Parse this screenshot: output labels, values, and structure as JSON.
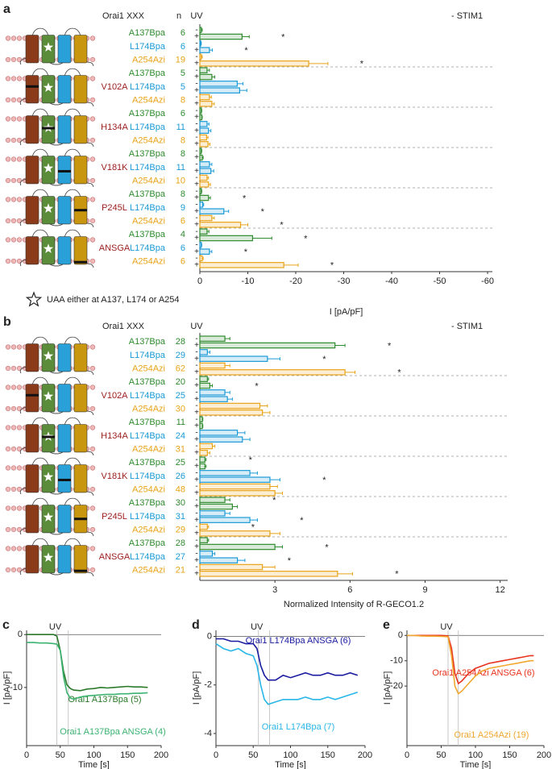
{
  "chart_data": [
    {
      "type": "hbar",
      "panel": "a",
      "header": "Orai1 XXX",
      "n_label": "n",
      "uv_label": "UV",
      "condition": "- STIM1",
      "uv_states": [
        "-",
        "+"
      ],
      "marker": "*",
      "xlabel": "I [pA/pF]",
      "note": "UAA either at A137, L174 or A254",
      "xlim": [
        0,
        -61
      ],
      "xticks": [
        0,
        -10,
        -20,
        -30,
        -40,
        -50,
        -60
      ],
      "uaa": [
        {
          "name": "A137Bpa",
          "color": "#2e8b2e"
        },
        {
          "name": "L174Bpa",
          "color": "#1a9ad6"
        },
        {
          "name": "A254Azi",
          "color": "#e8a317"
        }
      ],
      "groups": [
        {
          "mutant": null,
          "rows": [
            {
              "n": 6,
              "values": [
                -0.3,
                -8.8
              ],
              "errors": [
                0.2,
                1.5
              ],
              "significant": [
                false,
                true
              ]
            },
            {
              "n": 6,
              "values": [
                -0.2,
                -2.0
              ],
              "errors": [
                0.1,
                0.6
              ],
              "significant": [
                false,
                true
              ]
            },
            {
              "n": 19,
              "values": [
                -0.3,
                -22.7
              ],
              "errors": [
                0.2,
                4.0
              ],
              "significant": [
                false,
                true
              ]
            }
          ]
        },
        {
          "mutant": "V102A",
          "rows": [
            {
              "n": 5,
              "values": [
                -1.5,
                -2.5
              ],
              "errors": [
                0.5,
                0.6
              ],
              "significant": [
                false,
                false
              ]
            },
            {
              "n": 5,
              "values": [
                -7.8,
                -8.3
              ],
              "errors": [
                1.2,
                1.5
              ],
              "significant": [
                false,
                false
              ]
            },
            {
              "n": 8,
              "values": [
                -2.0,
                -2.5
              ],
              "errors": [
                0.4,
                0.5
              ],
              "significant": [
                false,
                false
              ]
            }
          ]
        },
        {
          "mutant": "H134A",
          "rows": [
            {
              "n": 6,
              "values": [
                -0.3,
                -0.4
              ],
              "errors": [
                0.1,
                0.1
              ],
              "significant": [
                false,
                false
              ]
            },
            {
              "n": 11,
              "values": [
                -1.5,
                -1.8
              ],
              "errors": [
                0.4,
                0.5
              ],
              "significant": [
                false,
                false
              ]
            },
            {
              "n": 8,
              "values": [
                -1.4,
                -1.7
              ],
              "errors": [
                0.3,
                0.4
              ],
              "significant": [
                false,
                false
              ]
            }
          ]
        },
        {
          "mutant": "V181K",
          "rows": [
            {
              "n": 8,
              "values": [
                -0.3,
                -0.5
              ],
              "errors": [
                0.1,
                0.2
              ],
              "significant": [
                false,
                false
              ]
            },
            {
              "n": 11,
              "values": [
                -2.0,
                -2.3
              ],
              "errors": [
                0.5,
                0.6
              ],
              "significant": [
                false,
                false
              ]
            },
            {
              "n": 10,
              "values": [
                -1.5,
                -1.8
              ],
              "errors": [
                0.3,
                0.4
              ],
              "significant": [
                false,
                false
              ]
            }
          ]
        },
        {
          "mutant": "P245L",
          "rows": [
            {
              "n": 8,
              "values": [
                -0.3,
                -1.8
              ],
              "errors": [
                0.1,
                0.4
              ],
              "significant": [
                false,
                true
              ]
            },
            {
              "n": 9,
              "values": [
                -0.6,
                -5.0
              ],
              "errors": [
                0.2,
                1.0
              ],
              "significant": [
                false,
                true
              ]
            },
            {
              "n": 6,
              "values": [
                -2.5,
                -8.5
              ],
              "errors": [
                0.5,
                1.5
              ],
              "significant": [
                false,
                true
              ]
            }
          ]
        },
        {
          "mutant": "ANSGA",
          "rows": [
            {
              "n": 4,
              "values": [
                -1.5,
                -11.0
              ],
              "errors": [
                0.4,
                4.0
              ],
              "significant": [
                false,
                true
              ]
            },
            {
              "n": 6,
              "values": [
                -0.3,
                -2.0
              ],
              "errors": [
                0.1,
                0.5
              ],
              "significant": [
                false,
                true
              ]
            },
            {
              "n": 6,
              "values": [
                -0.5,
                -17.5
              ],
              "errors": [
                0.2,
                3.0
              ],
              "significant": [
                false,
                true
              ]
            }
          ]
        }
      ]
    },
    {
      "type": "hbar",
      "panel": "b",
      "header": "Orai1 XXX",
      "uv_label": "UV",
      "condition": "- STIM1",
      "uv_states": [
        "-",
        "+"
      ],
      "marker": "*",
      "xlabel": "Normalized Intensity of R-GECO1.2",
      "xlim": [
        0,
        12.3
      ],
      "xticks": [
        3,
        6,
        9,
        12
      ],
      "uaa": [
        {
          "name": "A137Bpa",
          "color": "#2e8b2e"
        },
        {
          "name": "L174Bpa",
          "color": "#1a9ad6"
        },
        {
          "name": "A254Azi",
          "color": "#e8a317"
        }
      ],
      "groups": [
        {
          "mutant": null,
          "rows": [
            {
              "n": 28,
              "values": [
                1.0,
                5.4
              ],
              "errors": [
                0.2,
                0.4
              ],
              "significant": [
                false,
                true
              ]
            },
            {
              "n": 29,
              "values": [
                0.3,
                2.7
              ],
              "errors": [
                0.1,
                0.5
              ],
              "significant": [
                false,
                true
              ]
            },
            {
              "n": 62,
              "values": [
                1.0,
                5.8
              ],
              "errors": [
                0.2,
                0.4
              ],
              "significant": [
                false,
                true
              ]
            }
          ]
        },
        {
          "mutant": "V102A",
          "rows": [
            {
              "n": 20,
              "values": [
                0.3,
                0.4
              ],
              "errors": [
                0.05,
                0.1
              ],
              "significant": [
                false,
                true
              ]
            },
            {
              "n": 25,
              "values": [
                1.0,
                1.1
              ],
              "errors": [
                0.2,
                0.2
              ],
              "significant": [
                false,
                false
              ]
            },
            {
              "n": 30,
              "values": [
                2.4,
                2.5
              ],
              "errors": [
                0.3,
                0.3
              ],
              "significant": [
                false,
                false
              ]
            }
          ]
        },
        {
          "mutant": "H134A",
          "rows": [
            {
              "n": 11,
              "values": [
                0.1,
                0.1
              ],
              "errors": [
                0.02,
                0.02
              ],
              "significant": [
                false,
                false
              ]
            },
            {
              "n": 24,
              "values": [
                1.5,
                1.7
              ],
              "errors": [
                0.3,
                0.3
              ],
              "significant": [
                false,
                false
              ]
            },
            {
              "n": 31,
              "values": [
                0.5,
                0.3
              ],
              "errors": [
                0.1,
                0.1
              ],
              "significant": [
                false,
                false
              ]
            }
          ]
        },
        {
          "mutant": "V181K",
          "rows": [
            {
              "n": 25,
              "values": [
                0.2,
                0.2
              ],
              "errors": [
                0.05,
                0.05
              ],
              "significant": [
                true,
                false
              ]
            },
            {
              "n": 26,
              "values": [
                2.0,
                2.8
              ],
              "errors": [
                0.3,
                0.4
              ],
              "significant": [
                false,
                true
              ]
            },
            {
              "n": 48,
              "values": [
                2.8,
                3.0
              ],
              "errors": [
                0.3,
                0.3
              ],
              "significant": [
                false,
                false
              ]
            }
          ]
        },
        {
          "mutant": "P245L",
          "rows": [
            {
              "n": 30,
              "values": [
                1.0,
                1.3
              ],
              "errors": [
                0.2,
                0.2
              ],
              "significant": [
                true,
                false
              ]
            },
            {
              "n": 31,
              "values": [
                1.0,
                2.0
              ],
              "errors": [
                0.2,
                0.3
              ],
              "significant": [
                false,
                true
              ]
            },
            {
              "n": 29,
              "values": [
                0.3,
                2.8
              ],
              "errors": [
                0.05,
                0.4
              ],
              "significant": [
                true,
                false
              ]
            }
          ]
        },
        {
          "mutant": "ANSGA",
          "rows": [
            {
              "n": 28,
              "values": [
                0.3,
                3.0
              ],
              "errors": [
                0.05,
                0.3
              ],
              "significant": [
                false,
                true
              ]
            },
            {
              "n": 27,
              "values": [
                0.5,
                1.5
              ],
              "errors": [
                0.1,
                0.3
              ],
              "significant": [
                false,
                true
              ]
            },
            {
              "n": 21,
              "values": [
                2.5,
                5.5
              ],
              "errors": [
                0.5,
                0.6
              ],
              "significant": [
                false,
                true
              ]
            }
          ]
        }
      ]
    },
    {
      "type": "line",
      "panel": "c",
      "uv_label": "UV",
      "xlabel": "Time [s]",
      "ylabel": "I [pA/pF]",
      "xlim": [
        0,
        200
      ],
      "xticks": [
        0,
        50,
        100,
        150,
        200
      ],
      "ylim": [
        -21,
        0.8
      ],
      "yticks": [
        0,
        -10
      ],
      "uv_marks": [
        45,
        62
      ],
      "x": [
        0,
        10,
        20,
        30,
        40,
        45,
        50,
        55,
        60,
        65,
        70,
        80,
        90,
        100,
        110,
        120,
        130,
        140,
        150,
        160,
        170,
        180
      ],
      "series": [
        {
          "name": "Orai1 A137Bpa (5)",
          "color": "#2a7a2a",
          "values": [
            0,
            0,
            0,
            0,
            0,
            -0.3,
            -3,
            -7,
            -9.5,
            -10.2,
            -10.5,
            -10.6,
            -10.3,
            -10.2,
            -10.0,
            -10.1,
            -10.0,
            -9.9,
            -9.8,
            -9.9,
            -9.9,
            -10.0
          ]
        },
        {
          "name": "Orai1 A137Bpa ANSGA (4)",
          "color": "#3cb371",
          "values": [
            -1.5,
            -1.5,
            -1.6,
            -1.6,
            -1.7,
            -1.8,
            -3,
            -8,
            -11,
            -12,
            -12.2,
            -11.8,
            -11.6,
            -11.5,
            -11.4,
            -11.3,
            -11.3,
            -11.2,
            -11.2,
            -11.1,
            -11.1,
            -11.0
          ]
        }
      ]
    },
    {
      "type": "line",
      "panel": "d",
      "uv_label": "UV",
      "xlabel": "Time [s]",
      "ylabel": "I [pA/pF]",
      "xlim": [
        0,
        200
      ],
      "xticks": [
        0,
        50,
        100,
        150,
        200
      ],
      "ylim": [
        -4.5,
        0.25
      ],
      "yticks": [
        0,
        -2,
        -4
      ],
      "uv_marks": [
        57,
        72
      ],
      "x": [
        0,
        10,
        20,
        30,
        40,
        50,
        55,
        60,
        65,
        70,
        80,
        90,
        100,
        110,
        120,
        130,
        140,
        150,
        160,
        170,
        180,
        190
      ],
      "series": [
        {
          "name": "Orai1 L174Bpa ANSGA (6)",
          "color": "#1a1aa0",
          "values": [
            -0.1,
            -0.1,
            -0.2,
            -0.2,
            -0.3,
            -0.3,
            -0.5,
            -1.2,
            -1.6,
            -1.8,
            -1.8,
            -1.6,
            -1.7,
            -1.6,
            -1.5,
            -1.6,
            -1.6,
            -1.5,
            -1.6,
            -1.6,
            -1.5,
            -1.6
          ]
        },
        {
          "name": "Orai1 L174Bpa (7)",
          "color": "#29b6e8",
          "values": [
            -0.3,
            -0.5,
            -0.6,
            -0.5,
            -0.7,
            -0.8,
            -1.2,
            -2.0,
            -2.6,
            -2.8,
            -2.7,
            -2.6,
            -2.6,
            -2.6,
            -2.5,
            -2.6,
            -2.6,
            -2.5,
            -2.6,
            -2.5,
            -2.4,
            -2.3
          ]
        }
      ]
    },
    {
      "type": "line",
      "panel": "e",
      "uv_label": "UV",
      "xlabel": "Time [s]",
      "ylabel": "I [pA/pF]",
      "xlim": [
        0,
        200
      ],
      "xticks": [
        0,
        50,
        100,
        150,
        200
      ],
      "ylim": [
        -43.5,
        2
      ],
      "yticks": [
        0,
        -10,
        -20
      ],
      "uv_marks": [
        60,
        75
      ],
      "x": [
        0,
        10,
        20,
        30,
        40,
        50,
        60,
        65,
        70,
        75,
        80,
        90,
        100,
        110,
        120,
        130,
        140,
        150,
        160,
        170,
        180,
        185
      ],
      "series": [
        {
          "name": "Orai1 A254Azi ANSGA (6)",
          "color": "#e8321e",
          "values": [
            0,
            0,
            0,
            0,
            0,
            0,
            -0.2,
            -5,
            -15,
            -19,
            -18,
            -15,
            -13,
            -12,
            -11,
            -10.5,
            -10,
            -9.5,
            -9,
            -8.5,
            -8,
            -8
          ]
        },
        {
          "name": "Orai1 A254Azi (19)",
          "color": "#f0a830",
          "values": [
            0,
            0,
            -0.2,
            -0.3,
            -0.3,
            -0.4,
            -0.5,
            -8,
            -20,
            -23,
            -22,
            -19,
            -16,
            -14,
            -13,
            -12.5,
            -12,
            -11.5,
            -11,
            -10.5,
            -10,
            -10
          ]
        }
      ]
    }
  ]
}
